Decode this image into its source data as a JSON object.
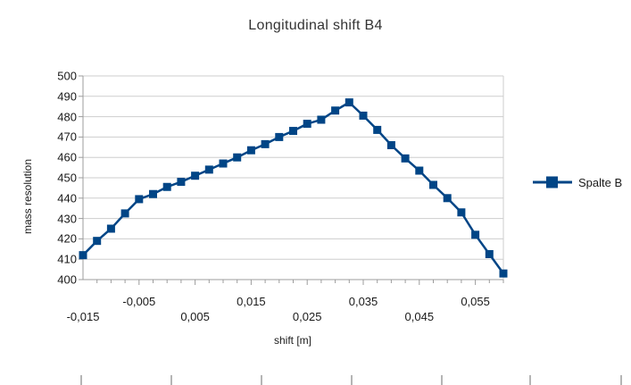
{
  "title": "Longitudinal shift B4",
  "legend": {
    "series_label": "Spalte B"
  },
  "colors": {
    "series": "#004586",
    "grid": "#cdcdcd",
    "axis": "#9c9c9c",
    "ruler_tick": "#b5b5b5"
  },
  "chart_data": {
    "type": "line",
    "title": "Longitudinal shift B4",
    "xlabel": "shift [m]",
    "ylabel": "mass resolution",
    "xlim": [
      -0.015,
      0.06
    ],
    "ylim": [
      400,
      500
    ],
    "grid": "horizontal-only",
    "legend_position": "right",
    "marker": "filled-square",
    "y_ticks": [
      400,
      410,
      420,
      430,
      440,
      450,
      460,
      470,
      480,
      490,
      500
    ],
    "x_minor_tick_step": 0.0025,
    "x_tick_labels": [
      {
        "value": -0.015,
        "label": "-0,015",
        "row": "bottom"
      },
      {
        "value": -0.005,
        "label": "-0,005",
        "row": "top"
      },
      {
        "value": 0.005,
        "label": "0,005",
        "row": "bottom"
      },
      {
        "value": 0.015,
        "label": "0,015",
        "row": "top"
      },
      {
        "value": 0.025,
        "label": "0,025",
        "row": "bottom"
      },
      {
        "value": 0.035,
        "label": "0,035",
        "row": "top"
      },
      {
        "value": 0.045,
        "label": "0,045",
        "row": "bottom"
      },
      {
        "value": 0.055,
        "label": "0,055",
        "row": "top"
      }
    ],
    "series": [
      {
        "name": "Spalte B",
        "x": [
          -0.015,
          -0.0125,
          -0.01,
          -0.0075,
          -0.005,
          -0.0025,
          0.0,
          0.0025,
          0.005,
          0.0075,
          0.01,
          0.0125,
          0.015,
          0.0175,
          0.02,
          0.0225,
          0.025,
          0.0275,
          0.03,
          0.0325,
          0.035,
          0.0375,
          0.04,
          0.0425,
          0.045,
          0.0475,
          0.05,
          0.0525,
          0.055,
          0.0575,
          0.06
        ],
        "y": [
          412,
          419,
          425,
          432.5,
          439.5,
          442,
          445.5,
          448,
          451,
          454,
          457,
          460,
          463.5,
          466.5,
          470,
          473,
          476.5,
          478.5,
          483,
          487,
          480.5,
          473.5,
          466,
          459.5,
          453.5,
          446.5,
          440,
          433,
          422,
          412.5,
          403
        ]
      }
    ]
  },
  "bottom_ruler_ticks_x": [
    90,
    191,
    292,
    393,
    494,
    593,
    695
  ]
}
